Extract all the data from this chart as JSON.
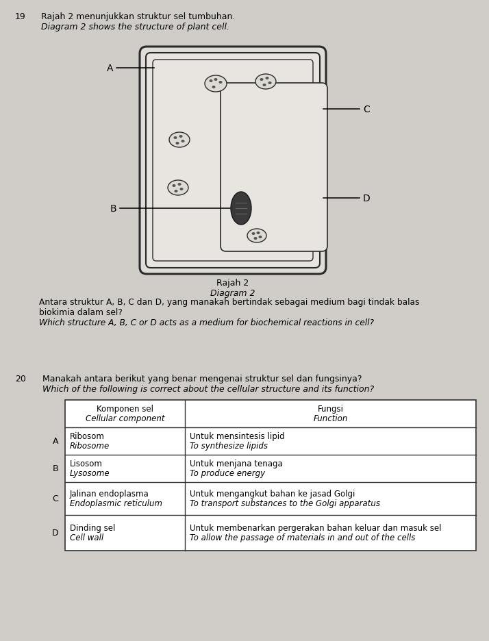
{
  "bg_color": "#d0cdc8",
  "q19_num": "19",
  "q19_line1": "Rajah 2 menunjukkan struktur sel tumbuhan.",
  "q19_line2": "Diagram 2 shows the structure of plant cell.",
  "q19_body1": "Antara struktur A, B, C dan D, yang manakah bertindak sebagai medium bagi tindak balas",
  "q19_body2": "biokimia dalam sel?",
  "q19_body3": "Which structure A, B, C or D acts as a medium for biochemical reactions in cell?",
  "diagram_caption1": "Rajah 2",
  "diagram_caption2": "Diagram 2",
  "label_A": "A",
  "label_B": "B",
  "label_C": "C",
  "label_D": "D",
  "q20_num": "20",
  "q20_line1": "Manakah antara berikut yang benar mengenai struktur sel dan fungsinya?",
  "q20_line2": "Which of the following is correct about the cellular structure and its function?",
  "table_header_col1_line1": "Komponen sel",
  "table_header_col1_line2": "Cellular component",
  "table_header_col2_line1": "Fungsi",
  "table_header_col2_line2": "Function",
  "rows": [
    {
      "letter": "A",
      "comp_line1": "Ribosom",
      "comp_line2": "Ribosome",
      "func_line1": "Untuk mensintesis lipid",
      "func_line2": "To synthesize lipids"
    },
    {
      "letter": "B",
      "comp_line1": "Lisosom",
      "comp_line2": "Lysosome",
      "func_line1": "Untuk menjana tenaga",
      "func_line2": "To produce energy"
    },
    {
      "letter": "C",
      "comp_line1": "Jalinan endoplasma",
      "comp_line2": "Endoplasmic reticulum",
      "func_line1": "Untuk mengangkut bahan ke jasad Golgi",
      "func_line2": "To transport substances to the Golgi apparatus"
    },
    {
      "letter": "D",
      "comp_line1": "Dinding sel",
      "comp_line2": "Cell wall",
      "func_line1": "Untuk membenarkan pergerakan bahan keluar dan masuk sel",
      "func_line2": "To allow the passage of materials in and out of the cells"
    }
  ]
}
